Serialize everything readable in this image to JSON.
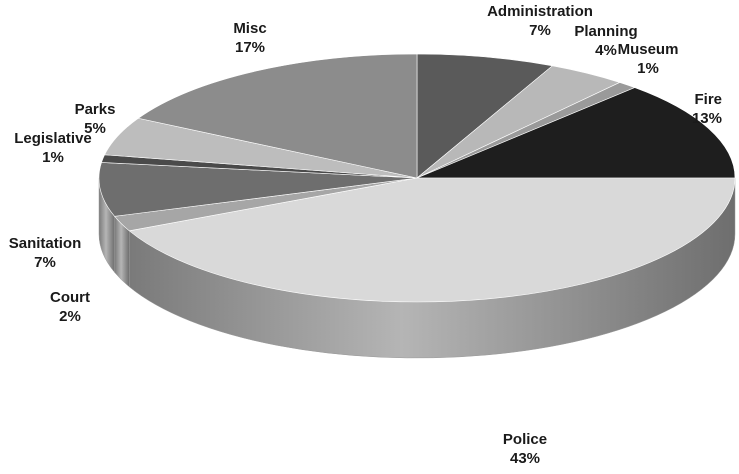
{
  "chart_data": {
    "type": "pie",
    "style": "3d",
    "title": "",
    "legend": "none",
    "slices": [
      {
        "label": "Administration",
        "value": 7,
        "display": "7%",
        "color": "#5a5a5a"
      },
      {
        "label": "Planning",
        "value": 4,
        "display": "4%",
        "color": "#b8b8b8"
      },
      {
        "label": "Museum",
        "value": 1,
        "display": "1%",
        "color": "#9a9a9a"
      },
      {
        "label": "Fire",
        "value": 13,
        "display": "13%",
        "color": "#1e1e1e"
      },
      {
        "label": "Police",
        "value": 43,
        "display": "43%",
        "color": "#d9d9d9"
      },
      {
        "label": "Court",
        "value": 2,
        "display": "2%",
        "color": "#a6a6a6"
      },
      {
        "label": "Sanitation",
        "value": 7,
        "display": "7%",
        "color": "#6e6e6e"
      },
      {
        "label": "Legislative",
        "value": 1,
        "display": "1%",
        "color": "#4a4a4a"
      },
      {
        "label": "Parks",
        "value": 5,
        "display": "5%",
        "color": "#bdbdbd"
      },
      {
        "label": "Misc",
        "value": 17,
        "display": "17%",
        "color": "#8c8c8c"
      }
    ]
  }
}
